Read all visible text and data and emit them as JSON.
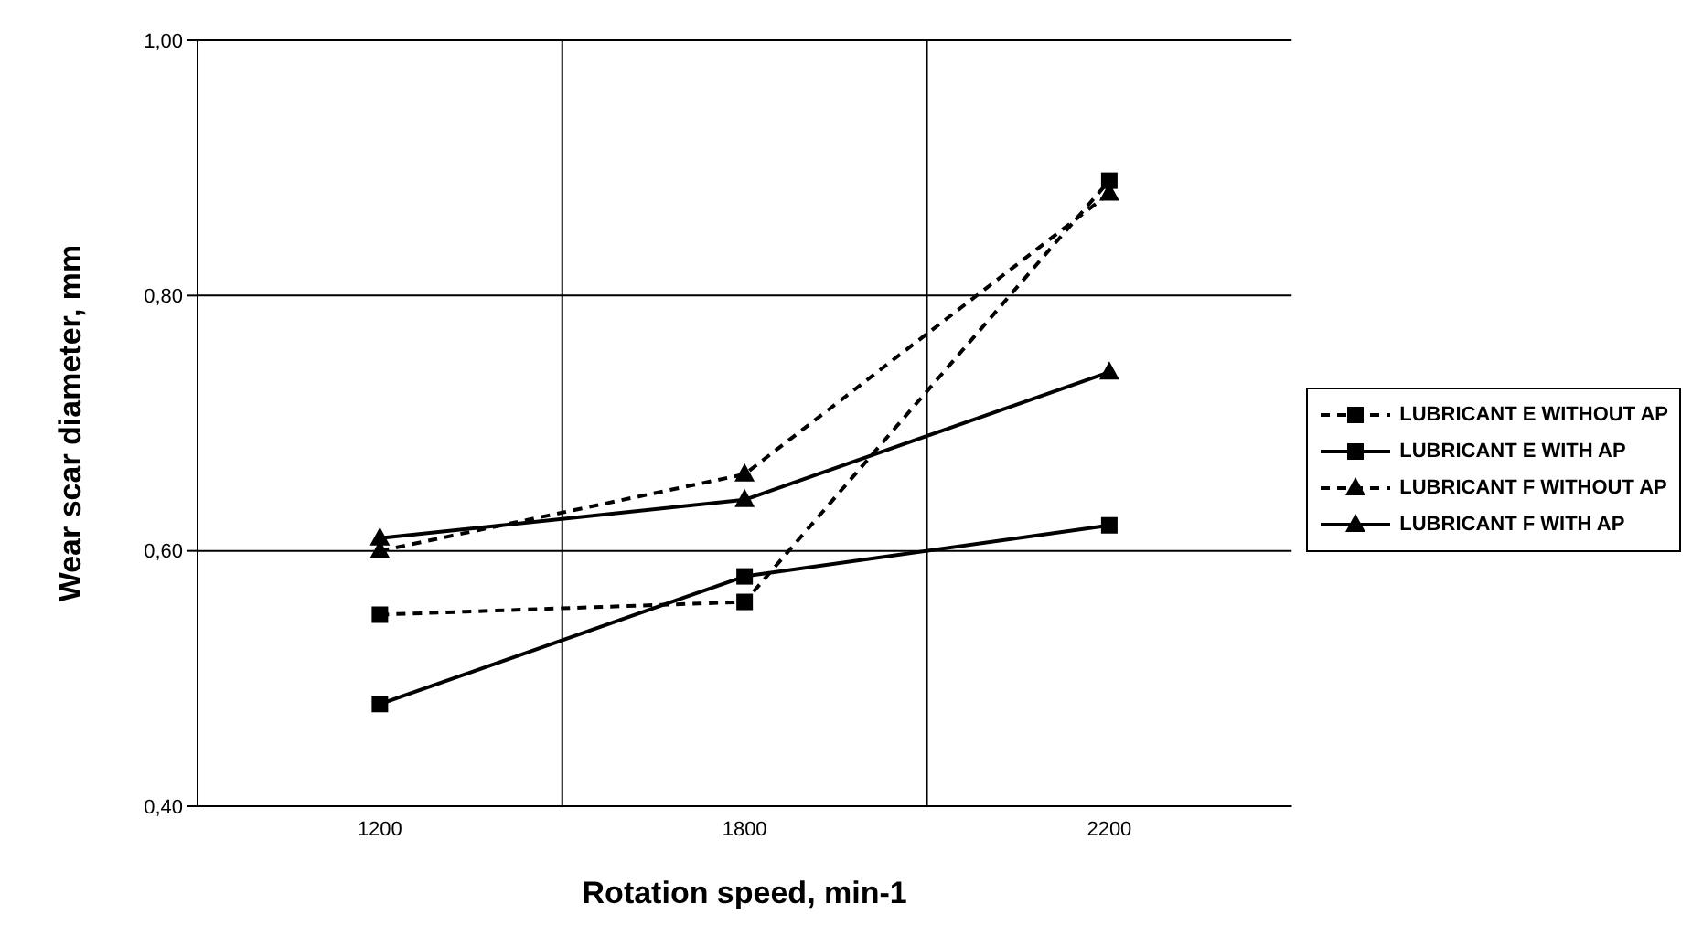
{
  "chart_data": {
    "type": "line",
    "xlabel": "Rotation speed, min-1",
    "ylabel": "Wear scar diameter, mm",
    "categories": [
      "1200",
      "1800",
      "2200"
    ],
    "series": [
      {
        "name": "LUBRICANT E WITHOUT AP",
        "color": "#000000",
        "marker": "square",
        "line_style": "dashed",
        "values": [
          0.55,
          0.56,
          0.89
        ]
      },
      {
        "name": "LUBRICANT E WITH AP",
        "color": "#000000",
        "marker": "square",
        "line_style": "solid",
        "values": [
          0.48,
          0.58,
          0.62
        ]
      },
      {
        "name": "LUBRICANT F WITHOUT AP",
        "color": "#000000",
        "marker": "triangle",
        "line_style": "dashed",
        "values": [
          0.6,
          0.66,
          0.88
        ]
      },
      {
        "name": "LUBRICANT F WITH AP",
        "color": "#000000",
        "marker": "triangle",
        "line_style": "solid",
        "values": [
          0.61,
          0.64,
          0.74
        ]
      }
    ],
    "ylim": [
      0.4,
      1.0
    ],
    "yticks": [
      {
        "value": 0.4,
        "label": "0,40"
      },
      {
        "value": 0.6,
        "label": "0,60"
      },
      {
        "value": 0.8,
        "label": "0,80"
      },
      {
        "value": 1.0,
        "label": "1,00"
      }
    ],
    "grid": true,
    "legend": "right"
  }
}
